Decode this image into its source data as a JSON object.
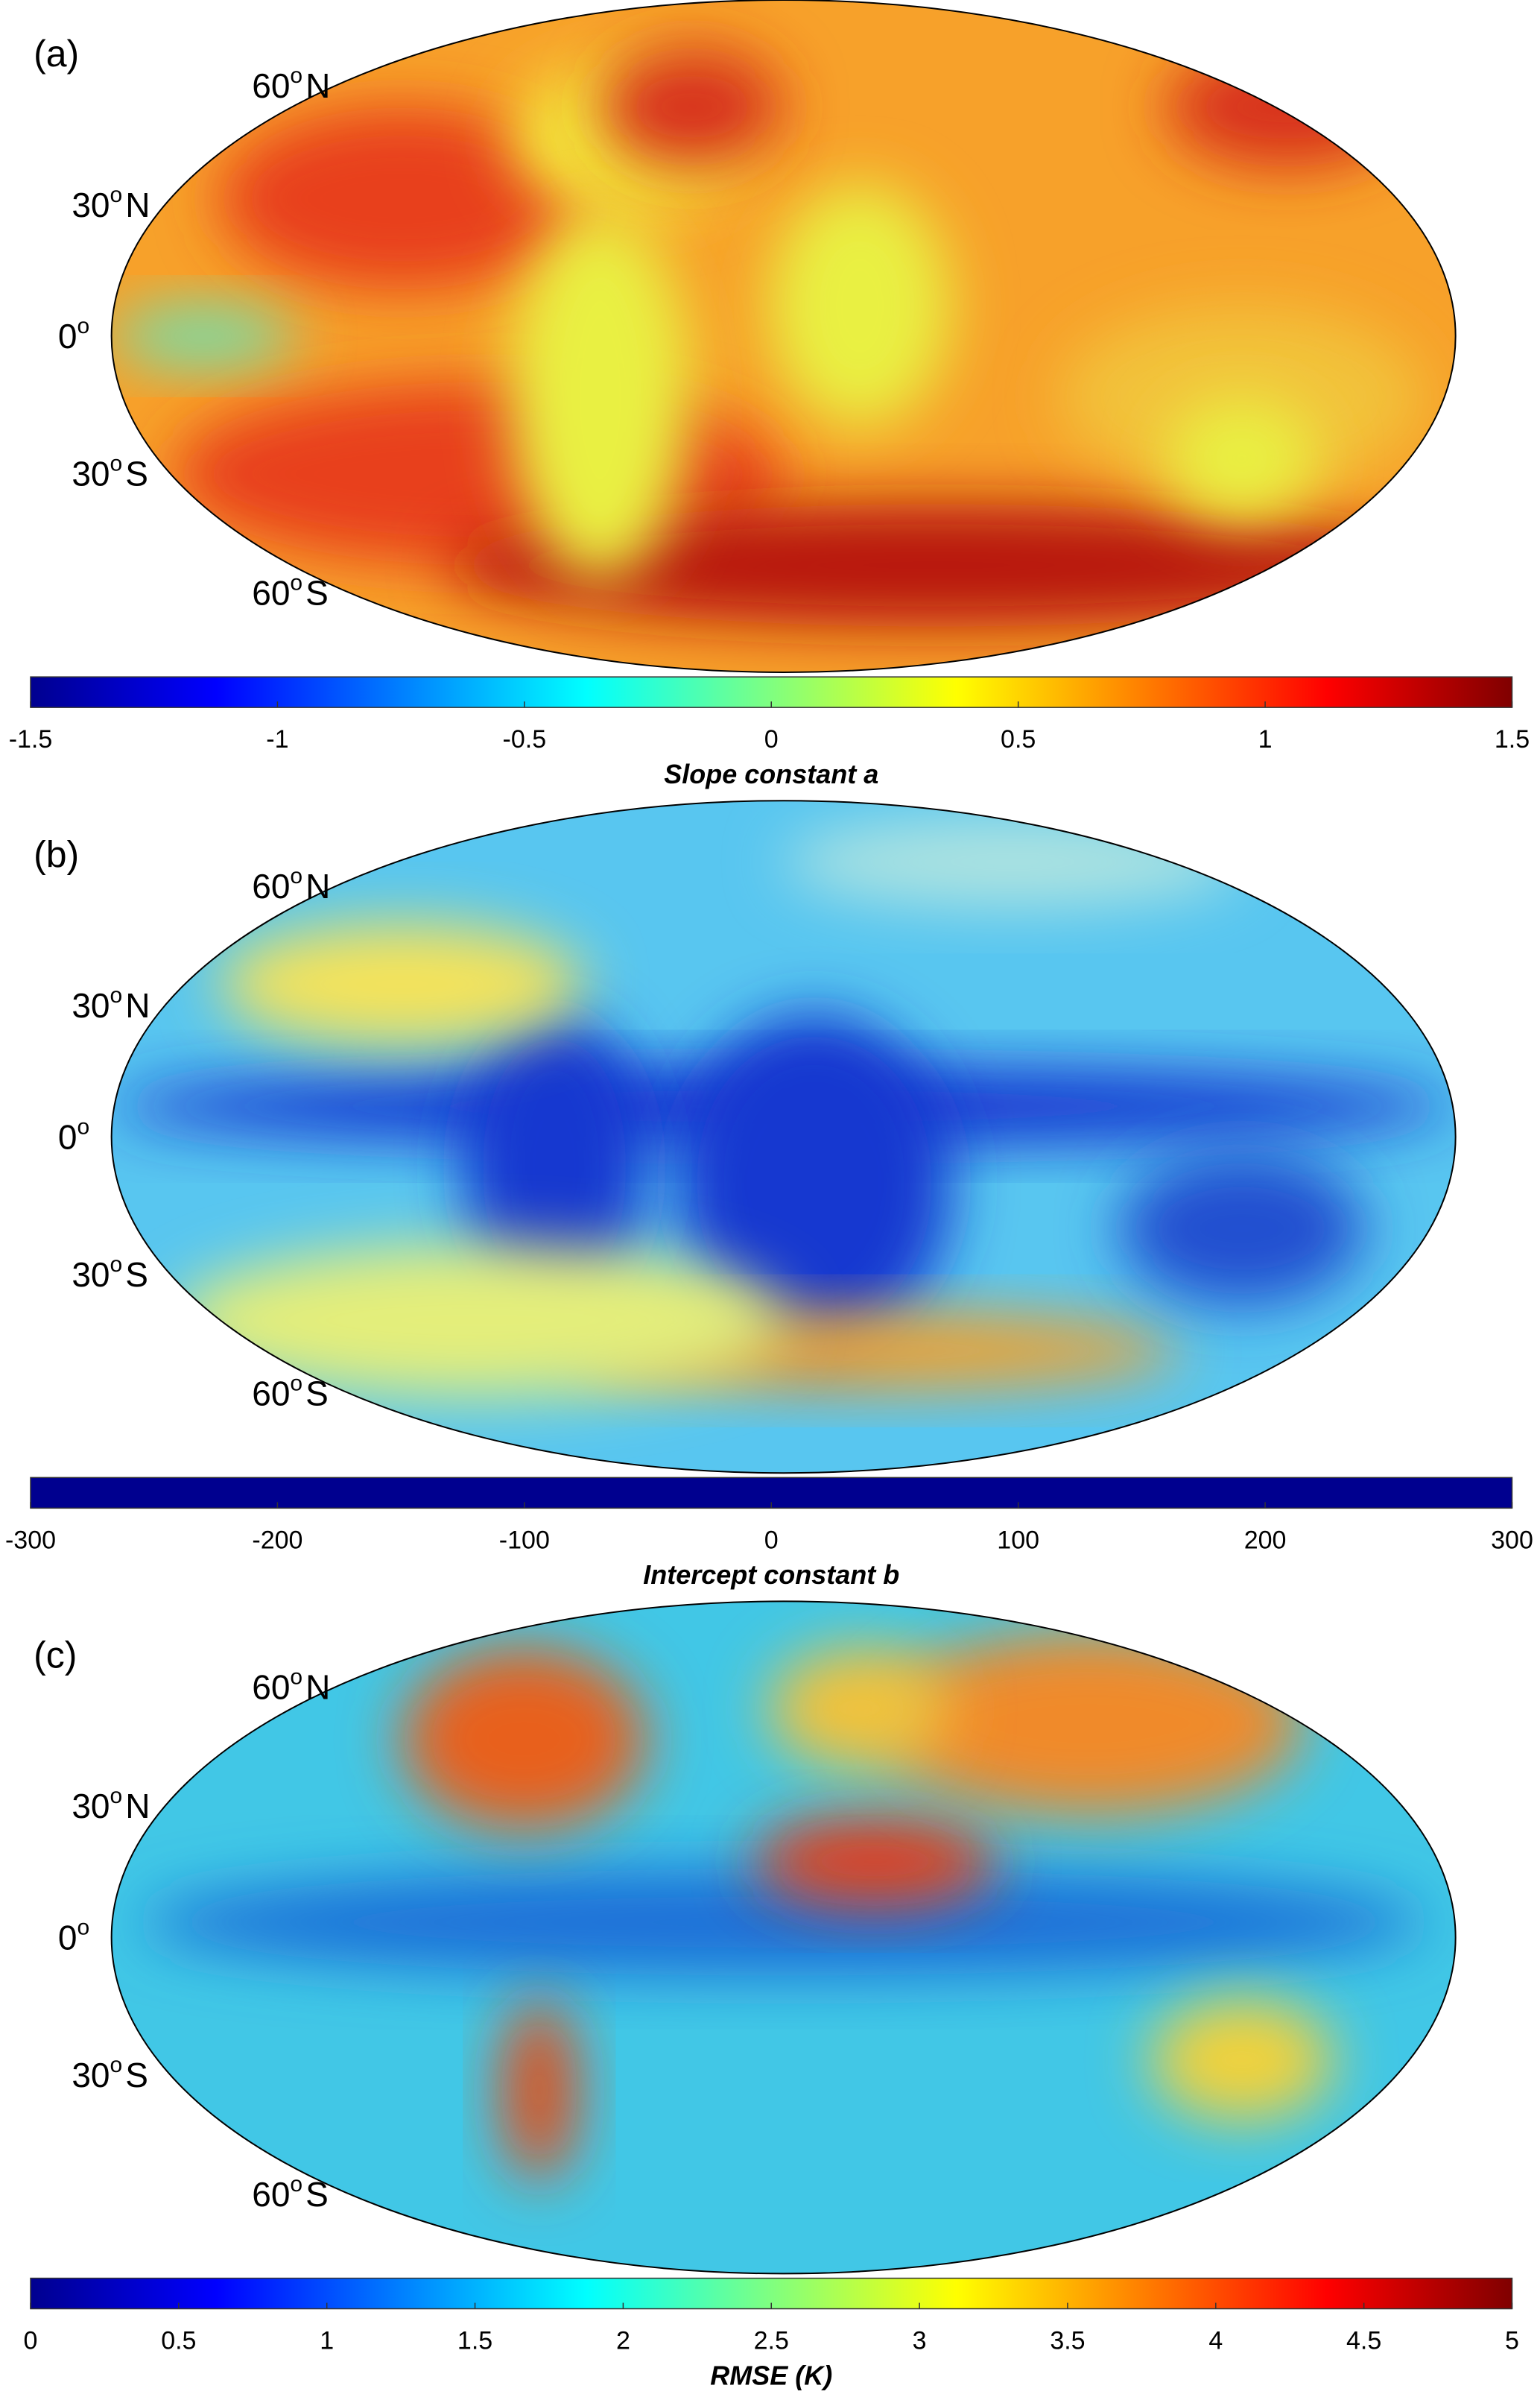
{
  "panels": [
    {
      "label": "(a)",
      "colorbar_label": "Slope constant a",
      "colormap": "jet",
      "reversed": false,
      "clim": [
        -1.5,
        1.5
      ],
      "ticks": [
        -1.5,
        -1,
        -0.5,
        0,
        0.5,
        1,
        1.5
      ],
      "lat_labels": [
        {
          "number": "60",
          "sup": "o",
          "suffix": "N"
        },
        {
          "number": "30",
          "sup": "o",
          "suffix": "N"
        },
        {
          "number": "0",
          "sup": "o"
        },
        {
          "number": "30",
          "sup": "o",
          "suffix": "S"
        },
        {
          "number": "60",
          "sup": "o",
          "suffix": "S"
        }
      ]
    },
    {
      "label": "(b)",
      "colorbar_label": "Intercept constant b",
      "colormap": "jet",
      "reversed": true,
      "clim": [
        -300,
        300
      ],
      "ticks": [
        -300,
        -200,
        -100,
        0,
        100,
        200,
        300
      ],
      "lat_labels": [
        {
          "number": "60",
          "sup": "o",
          "suffix": "N"
        },
        {
          "number": "30",
          "sup": "o",
          "suffix": "N"
        },
        {
          "number": "0",
          "sup": "o"
        },
        {
          "number": "30",
          "sup": "o",
          "suffix": "S"
        },
        {
          "number": "60",
          "sup": "o",
          "suffix": "S"
        }
      ]
    },
    {
      "label": "(c)",
      "colorbar_label": "RMSE (K)",
      "colormap": "jet",
      "reversed": false,
      "clim": [
        0,
        5
      ],
      "ticks": [
        0,
        0.5,
        1,
        1.5,
        2,
        2.5,
        3,
        3.5,
        4,
        4.5,
        5
      ],
      "lat_labels": [
        {
          "number": "60",
          "sup": "o",
          "suffix": "N"
        },
        {
          "number": "30",
          "sup": "o",
          "suffix": "N"
        },
        {
          "number": "0",
          "sup": "o"
        },
        {
          "number": "30",
          "sup": "o",
          "suffix": "S"
        },
        {
          "number": "60",
          "sup": "o",
          "suffix": "S"
        }
      ]
    }
  ]
}
